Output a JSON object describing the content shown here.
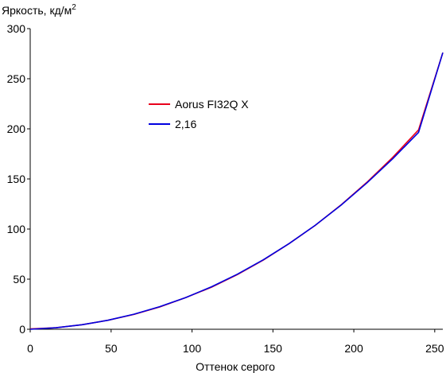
{
  "chart_data": {
    "type": "line",
    "ylabel": "Яркость, кд/м",
    "ylabel_sup": "2",
    "xlabel": "Оттенок серого",
    "xlim": [
      0,
      255
    ],
    "ylim": [
      0,
      300
    ],
    "x_ticks": [
      0,
      50,
      100,
      150,
      200,
      250
    ],
    "y_ticks": [
      0,
      50,
      100,
      150,
      200,
      250,
      300
    ],
    "grid": false,
    "legend_position": "center-left",
    "series": [
      {
        "name": "Aorus FI32Q X",
        "color": "#e8001c",
        "x": [
          0,
          16,
          32,
          48,
          64,
          80,
          96,
          112,
          128,
          144,
          160,
          176,
          192,
          208,
          224,
          240,
          255
        ],
        "y": [
          0.3,
          1.5,
          4.5,
          9.0,
          14.8,
          22.2,
          31.5,
          42.0,
          54.5,
          69.0,
          85.5,
          103.5,
          124.0,
          146.5,
          171.5,
          199.0,
          276.0
        ]
      },
      {
        "name": "2,16",
        "color": "#0000e0",
        "x": [
          0,
          16,
          32,
          48,
          64,
          80,
          96,
          112,
          128,
          144,
          160,
          176,
          192,
          208,
          224,
          240,
          255
        ],
        "y": [
          0.0,
          1.5,
          4.5,
          9.0,
          15.0,
          22.5,
          31.6,
          42.4,
          54.9,
          69.3,
          85.5,
          103.6,
          123.7,
          145.9,
          170.1,
          196.5,
          276.0
        ]
      }
    ]
  }
}
